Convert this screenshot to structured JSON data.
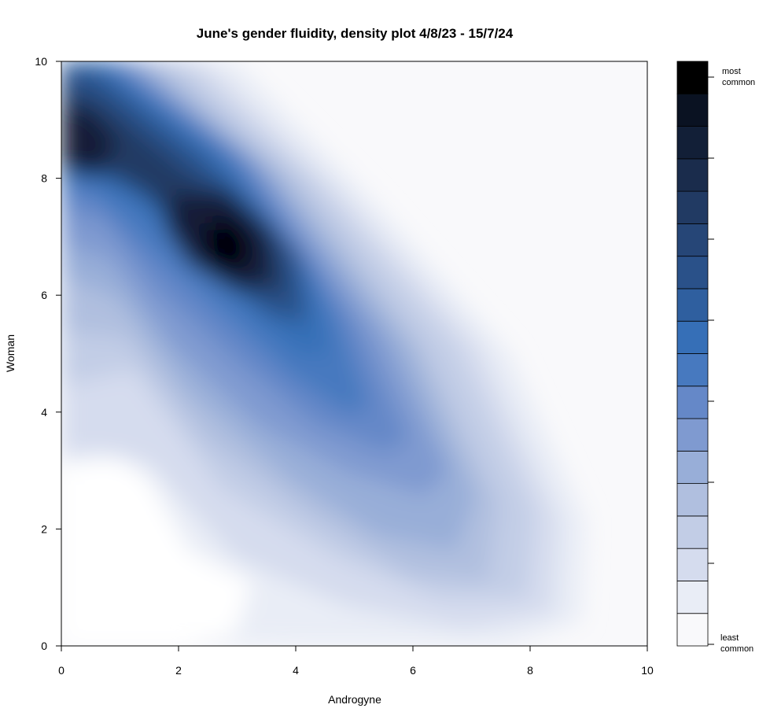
{
  "chart_data": {
    "type": "contour",
    "title": "June's gender fluidity, density plot 4/8/23 - 15/7/24",
    "xlabel": "Androgyne",
    "ylabel": "Woman",
    "xlim": [
      0,
      10
    ],
    "ylim": [
      0,
      10
    ],
    "xticks": [
      "0",
      "2",
      "4",
      "6",
      "8",
      "10"
    ],
    "yticks": [
      "0",
      "2",
      "4",
      "6",
      "8",
      "10"
    ],
    "grid": false,
    "legend": {
      "position": "right",
      "top_label": "most common",
      "bottom_label": "least common",
      "levels": 18,
      "colors_low_to_high": [
        "#f9f9fb",
        "#e9edf6",
        "#d5dcee",
        "#c2cde6",
        "#b0bfdf",
        "#98aed8",
        "#7f9ad0",
        "#6588c8",
        "#4779bf",
        "#366fb7",
        "#2f5f9f",
        "#2a5189",
        "#264677",
        "#213a63",
        "#1a2c4c",
        "#121f37",
        "#0a1222",
        "#000000"
      ]
    },
    "density_modes": [
      {
        "x": 2.8,
        "y": 6.8,
        "level": "highest"
      },
      {
        "x": 0.3,
        "y": 8.7,
        "level": "secondary"
      }
    ]
  }
}
